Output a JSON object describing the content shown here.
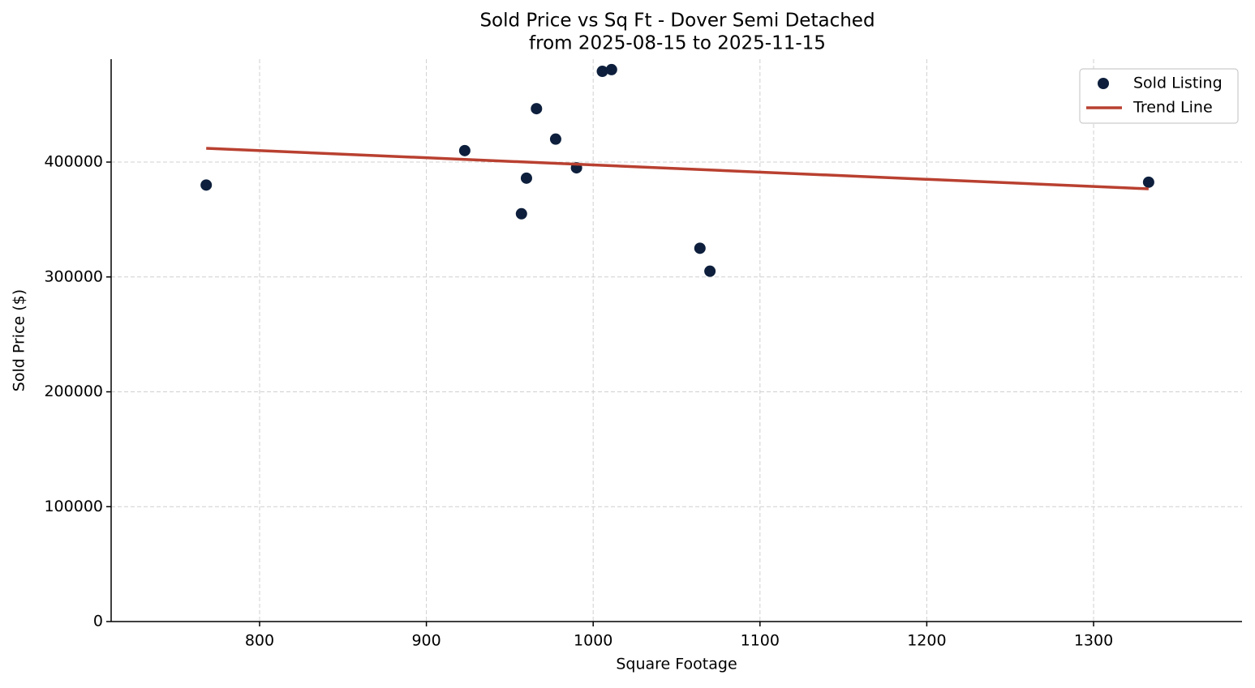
{
  "chart_data": {
    "type": "scatter",
    "title": "Sold Price vs Sq Ft - Dover Semi Detached",
    "subtitle": "from 2025-08-15 to 2025-11-15",
    "x_label": "Square Footage",
    "y_label": "Sold Price ($)",
    "xlim": [
      711,
      1389
    ],
    "ylim": [
      0,
      489600
    ],
    "xticks": [
      800,
      900,
      1000,
      1100,
      1200,
      1300
    ],
    "yticks": [
      0,
      100000,
      200000,
      300000,
      400000
    ],
    "grid": true,
    "legend": "upper right",
    "series": [
      {
        "name": "Sold Listing",
        "color": "#0d1f3c",
        "mode": "markers",
        "x": [
          768,
          923,
          957,
          960,
          966,
          977.5,
          990,
          1005.5,
          1011,
          1064,
          1070,
          1333
        ],
        "values": [
          380000,
          410000,
          355000,
          386000,
          446500,
          420000,
          395000,
          479000,
          480500,
          325000,
          305000,
          382500
        ]
      },
      {
        "name": "Trend Line",
        "color": "#b94030",
        "mode": "line",
        "x": [
          768,
          1333
        ],
        "values": [
          412000,
          376700
        ]
      }
    ]
  }
}
